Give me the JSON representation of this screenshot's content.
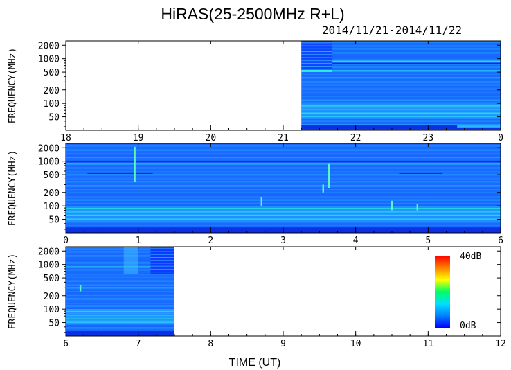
{
  "title": "HiRAS(25-2500MHz R+L)",
  "date_range": "2014/11/21-2014/11/22",
  "x_axis_label": "TIME (UT)",
  "y_axis_label": "FREQUENCY(MHz)",
  "colors": {
    "background": "#ffffff",
    "spectrum_base": "#1a66ff",
    "spectrum_light": "#1fa0ff",
    "emission_line": "#2cf0d2",
    "absorption_band": "#0a2ae0"
  },
  "chart_data": [
    {
      "type": "heatmap",
      "panel": "top",
      "xlabel": "",
      "ylabel": "FREQUENCY(MHz)",
      "x_ticks": [
        "18",
        "19",
        "20",
        "21",
        "22",
        "23",
        "0"
      ],
      "xlim": [
        18,
        24
      ],
      "x_tick_values": [
        18,
        19,
        20,
        21,
        22,
        23,
        24
      ],
      "y_scale": "log",
      "ylim": [
        25,
        2500
      ],
      "y_ticks": [
        "50",
        "100",
        "200",
        "500",
        "1000",
        "2000"
      ],
      "y_tick_values": [
        50,
        100,
        200,
        500,
        1000,
        2000
      ],
      "data_start": 21.25,
      "data_end": 24,
      "bursts": []
    },
    {
      "type": "heatmap",
      "panel": "middle",
      "xlabel": "",
      "ylabel": "FREQUENCY(MHz)",
      "x_ticks": [
        "0",
        "1",
        "2",
        "3",
        "4",
        "5",
        "6"
      ],
      "xlim": [
        0,
        6
      ],
      "x_tick_values": [
        0,
        1,
        2,
        3,
        4,
        5,
        6
      ],
      "y_scale": "log",
      "ylim": [
        25,
        2500
      ],
      "y_ticks": [
        "50",
        "100",
        "200",
        "500",
        "1000",
        "2000"
      ],
      "y_tick_values": [
        50,
        100,
        200,
        500,
        1000,
        2000
      ],
      "data_start": 0,
      "data_end": 6,
      "bursts": [
        {
          "t": 0.95,
          "fmin": 350,
          "fmax": 2100
        },
        {
          "t": 2.7,
          "fmin": 100,
          "fmax": 160
        },
        {
          "t": 3.55,
          "fmin": 200,
          "fmax": 300
        },
        {
          "t": 3.63,
          "fmin": 250,
          "fmax": 900
        },
        {
          "t": 4.5,
          "fmin": 80,
          "fmax": 130
        },
        {
          "t": 4.85,
          "fmin": 80,
          "fmax": 110
        }
      ]
    },
    {
      "type": "heatmap",
      "panel": "bottom",
      "xlabel": "TIME (UT)",
      "ylabel": "FREQUENCY(MHz)",
      "x_ticks": [
        "6",
        "7",
        "8",
        "9",
        "10",
        "11",
        "12"
      ],
      "xlim": [
        6,
        12
      ],
      "x_tick_values": [
        6,
        7,
        8,
        9,
        10,
        11,
        12
      ],
      "y_scale": "log",
      "ylim": [
        25,
        2500
      ],
      "y_ticks": [
        "50",
        "100",
        "200",
        "500",
        "1000",
        "2000"
      ],
      "y_tick_values": [
        50,
        100,
        200,
        500,
        1000,
        2000
      ],
      "data_start": 6,
      "data_end": 7.5,
      "bursts": [
        {
          "t": 6.2,
          "fmin": 250,
          "fmax": 350
        }
      ]
    }
  ],
  "colorbar": {
    "max_label": "40dB",
    "min_label": "0dB",
    "range_db": [
      0,
      40
    ],
    "stops": [
      "#0000ff",
      "#0080ff",
      "#00e0ff",
      "#00ff60",
      "#ffff00",
      "#ff8000",
      "#ff0000"
    ]
  }
}
